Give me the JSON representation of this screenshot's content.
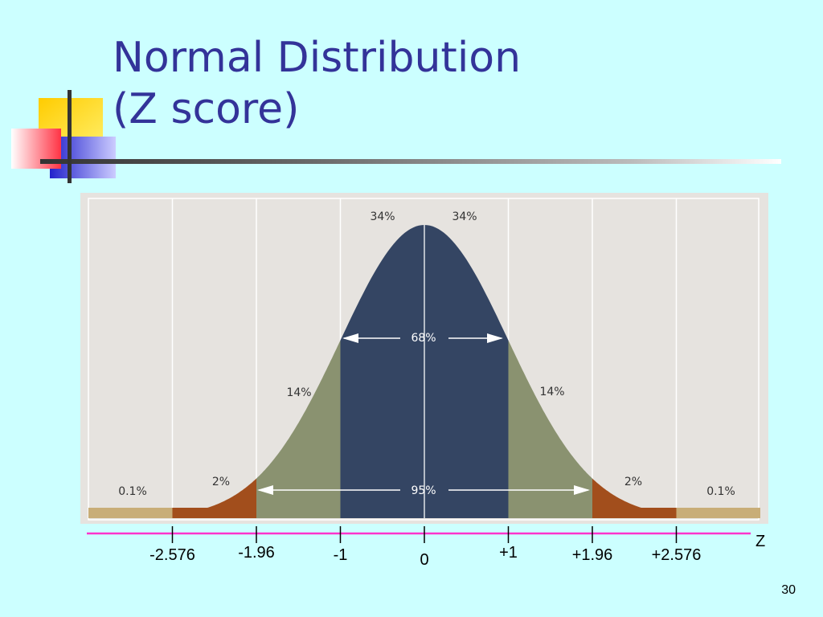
{
  "slide": {
    "title_line1": "Normal Distribution",
    "title_line2": "(Z score)",
    "number": "30"
  },
  "colors": {
    "background": "#ccffff",
    "title": "#333399",
    "center_band": "#344563",
    "second_band": "#8a9270",
    "third_band": "#a24e1c",
    "outer_band": "#c8ad78",
    "plot_background": "#e6e3df",
    "z_axis": "#ff33cc"
  },
  "diagram": {
    "percent_labels": {
      "left_center": "34%",
      "right_center": "34%",
      "left_second": "14%",
      "right_second": "14%",
      "left_third": "2%",
      "right_third": "2%",
      "left_outer": "0.1%",
      "right_outer": "0.1%",
      "one_sd": "68%",
      "two_sd": "95%"
    },
    "z_label": "Z",
    "ticks": [
      {
        "z": -2.576,
        "label": "-2.576"
      },
      {
        "z": -1.96,
        "label": "-1.96"
      },
      {
        "z": -1,
        "label": "-1"
      },
      {
        "z": 0,
        "label": "0"
      },
      {
        "z": 1,
        "label": "+1"
      },
      {
        "z": 1.96,
        "label": "+1.96"
      },
      {
        "z": 2.576,
        "label": "+2.576"
      }
    ]
  }
}
